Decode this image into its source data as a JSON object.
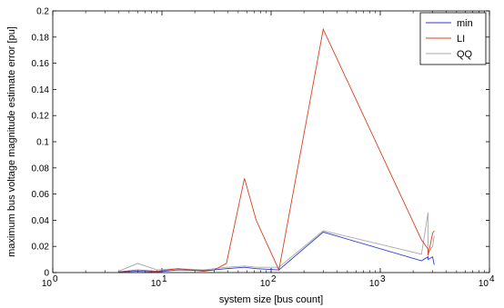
{
  "chart_data": {
    "type": "line",
    "xscale": "log",
    "xlim": [
      1,
      10000
    ],
    "ylim": [
      0,
      0.2
    ],
    "xlabel": "system size [bus count]",
    "ylabel": "maximum bus voltage magnitude estimate error [pu]",
    "grid": false,
    "legend_position": "top-right",
    "x_ticks": [
      {
        "value": 1,
        "base": "10",
        "exp": "0"
      },
      {
        "value": 10,
        "base": "10",
        "exp": "1"
      },
      {
        "value": 100,
        "base": "10",
        "exp": "2"
      },
      {
        "value": 1000,
        "base": "10",
        "exp": "3"
      },
      {
        "value": 10000,
        "base": "10",
        "exp": "4"
      }
    ],
    "y_ticks": [
      {
        "value": 0,
        "label": "0"
      },
      {
        "value": 0.02,
        "label": "0.02"
      },
      {
        "value": 0.04,
        "label": "0.04"
      },
      {
        "value": 0.06,
        "label": "0.06"
      },
      {
        "value": 0.08,
        "label": "0.08"
      },
      {
        "value": 0.1,
        "label": "0.1"
      },
      {
        "value": 0.12,
        "label": "0.12"
      },
      {
        "value": 0.14,
        "label": "0.14"
      },
      {
        "value": 0.16,
        "label": "0.16"
      },
      {
        "value": 0.18,
        "label": "0.18"
      },
      {
        "value": 0.2,
        "label": "0.2"
      }
    ],
    "series": [
      {
        "name": "min",
        "color": "#2b3bd6",
        "x": [
          4,
          6,
          9,
          14,
          24,
          30,
          39,
          57,
          73,
          118,
          300,
          2383,
          2736,
          2746,
          3012,
          3120
        ],
        "y": [
          0.0005,
          0.001,
          0.0005,
          0.002,
          0.0015,
          0.002,
          0.003,
          0.004,
          0.003,
          0.002,
          0.031,
          0.009,
          0.012,
          0.01,
          0.012,
          0.006
        ]
      },
      {
        "name": "LI",
        "color": "#d9401f",
        "x": [
          4,
          6,
          9,
          14,
          24,
          30,
          39,
          57,
          73,
          118,
          300,
          2383,
          2736,
          2746,
          3012,
          3120
        ],
        "y": [
          0.0005,
          0.002,
          0.001,
          0.003,
          0.001,
          0.002,
          0.007,
          0.072,
          0.04,
          0.002,
          0.186,
          0.025,
          0.018,
          0.013,
          0.03,
          0.032
        ]
      },
      {
        "name": "QQ",
        "color": "#a8a8a8",
        "x": [
          4,
          6,
          9,
          14,
          24,
          30,
          39,
          57,
          73,
          118,
          300,
          2383,
          2736,
          2746,
          3012,
          3120
        ],
        "y": [
          0.001,
          0.007,
          0.002,
          0.003,
          0.002,
          0.003,
          0.004,
          0.005,
          0.004,
          0.004,
          0.032,
          0.014,
          0.046,
          0.015,
          0.02,
          0.028
        ]
      }
    ]
  }
}
